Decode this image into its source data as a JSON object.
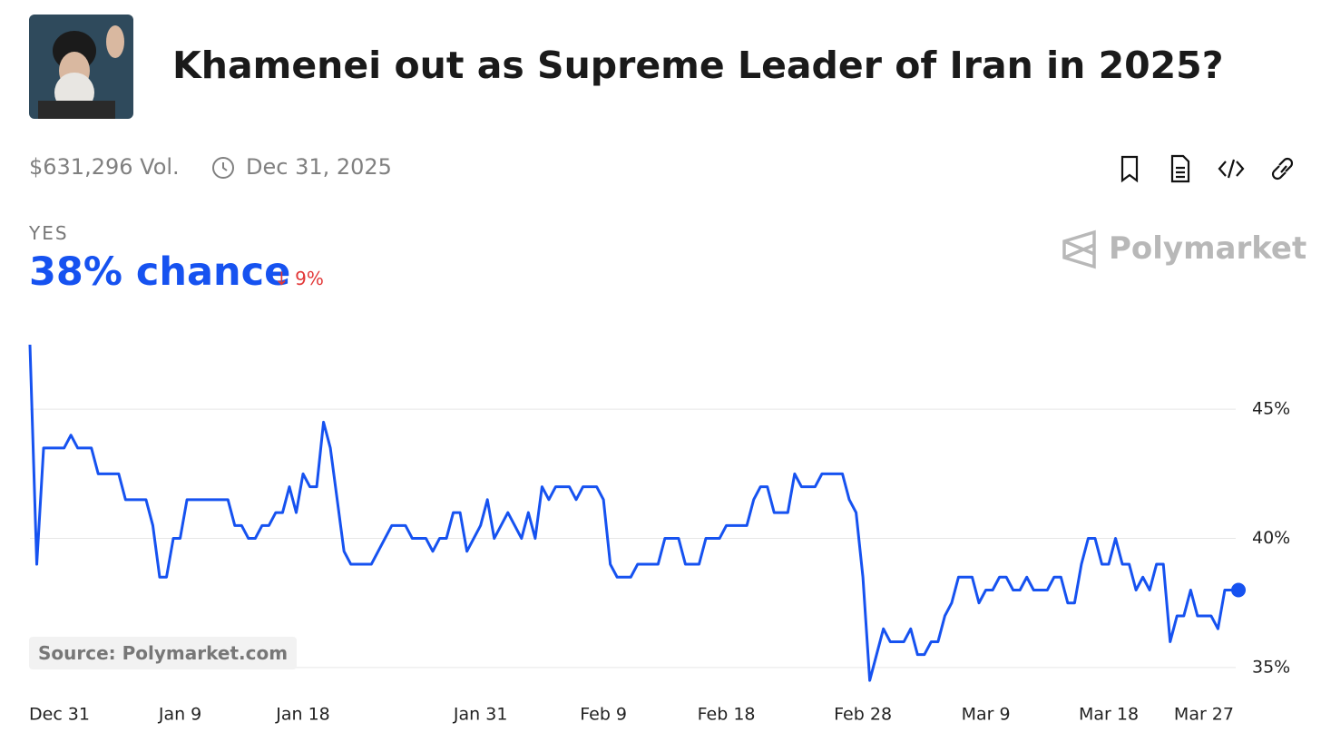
{
  "header": {
    "title": "Khamenei out as Supreme Leader of Iran in 2025?",
    "volume": "$631,296 Vol.",
    "end_date": "Dec 31, 2025"
  },
  "outcome": {
    "label": "YES",
    "chance": "38% chance",
    "change": "9%"
  },
  "brand": "Polymarket",
  "source": "Source: Polymarket.com",
  "chart_data": {
    "type": "line",
    "color": "#1652f0",
    "grid": true,
    "x": [
      -2,
      -1.5,
      -1,
      0.5,
      1,
      1.5,
      2.5,
      3,
      4.5,
      5,
      6.5,
      7,
      7.5,
      8,
      8.5,
      9,
      9.5,
      12.5,
      13,
      13.5,
      14,
      14.5,
      15,
      15.5,
      16,
      16.5,
      17,
      17.5,
      18,
      18.5,
      19,
      19.5,
      20,
      20.5,
      21,
      21.5,
      23,
      23.5,
      24,
      24.5,
      25.5,
      26,
      27,
      27.5,
      28,
      28.5,
      29,
      29.5,
      30,
      30.5,
      31,
      31.5,
      32,
      32.5,
      33,
      33.5,
      34,
      34.5,
      35,
      35.5,
      36,
      36.5,
      37.5,
      38,
      38.5,
      39.5,
      40,
      40.5,
      41,
      42,
      42.5,
      44,
      44.5,
      45.5,
      46,
      47,
      47.5,
      48.5,
      49,
      50.5,
      51,
      51.5,
      52,
      52.5,
      53.5,
      54,
      54.5,
      55.5,
      56,
      57.5,
      58,
      58.5,
      59,
      59.5,
      60,
      60.5,
      61,
      62,
      62.5,
      63,
      63.5,
      64,
      64.5,
      65,
      65.5,
      66,
      67,
      67.5,
      68,
      68.5,
      69,
      69.5,
      70,
      70.5,
      71,
      71.5,
      72.5,
      73,
      73.5,
      74,
      74.5,
      75,
      75.5,
      76,
      76.5,
      77,
      77.5,
      78,
      78.5,
      79,
      79.5,
      80,
      80.5,
      81,
      81.5,
      82,
      82.5,
      83,
      83.5,
      84.5,
      85,
      85.5,
      86.5
    ],
    "values": [
      47.5,
      39,
      43.5,
      43.5,
      44,
      43.5,
      43.5,
      42.5,
      42.5,
      41.5,
      41.5,
      40.5,
      38.5,
      38.5,
      40,
      40,
      41.5,
      41.5,
      40.5,
      40.5,
      40,
      40,
      40.5,
      40.5,
      41,
      41,
      42,
      41,
      42.5,
      42,
      42,
      44.5,
      43.5,
      41.5,
      39.5,
      39,
      39,
      39.5,
      40,
      40.5,
      40.5,
      40,
      40,
      39.5,
      40,
      40,
      41,
      41,
      39.5,
      40,
      40.5,
      41.5,
      40,
      40.5,
      41,
      40.5,
      40,
      41,
      40,
      42,
      41.5,
      42,
      42,
      41.5,
      42,
      42,
      41.5,
      39,
      38.5,
      38.5,
      39,
      39,
      40,
      40,
      39,
      39,
      40,
      40,
      40.5,
      40.5,
      41.5,
      42,
      42,
      41,
      41,
      42.5,
      42,
      42,
      42.5,
      42.5,
      41.5,
      41,
      38.5,
      34.5,
      35.5,
      36.5,
      36,
      36,
      36.5,
      35.5,
      35.5,
      36,
      36,
      37,
      37.5,
      38.5,
      38.5,
      37.5,
      38,
      38,
      38.5,
      38.5,
      38,
      38,
      38.5,
      38,
      38,
      38.5,
      38.5,
      37.5,
      37.5,
      39,
      40,
      40,
      39,
      39,
      40,
      39,
      39,
      38,
      38.5,
      38,
      39,
      39,
      36,
      37,
      37,
      38,
      37,
      37,
      36.5,
      38,
      38
    ],
    "xlim": [
      -2,
      86.5
    ],
    "xticks": [
      {
        "value": 0,
        "label": "Dec 31"
      },
      {
        "value": 9,
        "label": "Jan 9"
      },
      {
        "value": 18,
        "label": "Jan 18"
      },
      {
        "value": 31,
        "label": "Jan 31"
      },
      {
        "value": 40,
        "label": "Feb 9"
      },
      {
        "value": 49,
        "label": "Feb 18"
      },
      {
        "value": 59,
        "label": "Feb 28"
      },
      {
        "value": 68,
        "label": "Mar 9"
      },
      {
        "value": 77,
        "label": "Mar 18"
      },
      {
        "value": 86,
        "label": "Mar 27"
      }
    ],
    "ylim": [
      34.4,
      47.5
    ],
    "yticks": [
      {
        "value": 35,
        "label": "35%"
      },
      {
        "value": 40,
        "label": "40%"
      },
      {
        "value": 45,
        "label": "45%"
      }
    ]
  }
}
